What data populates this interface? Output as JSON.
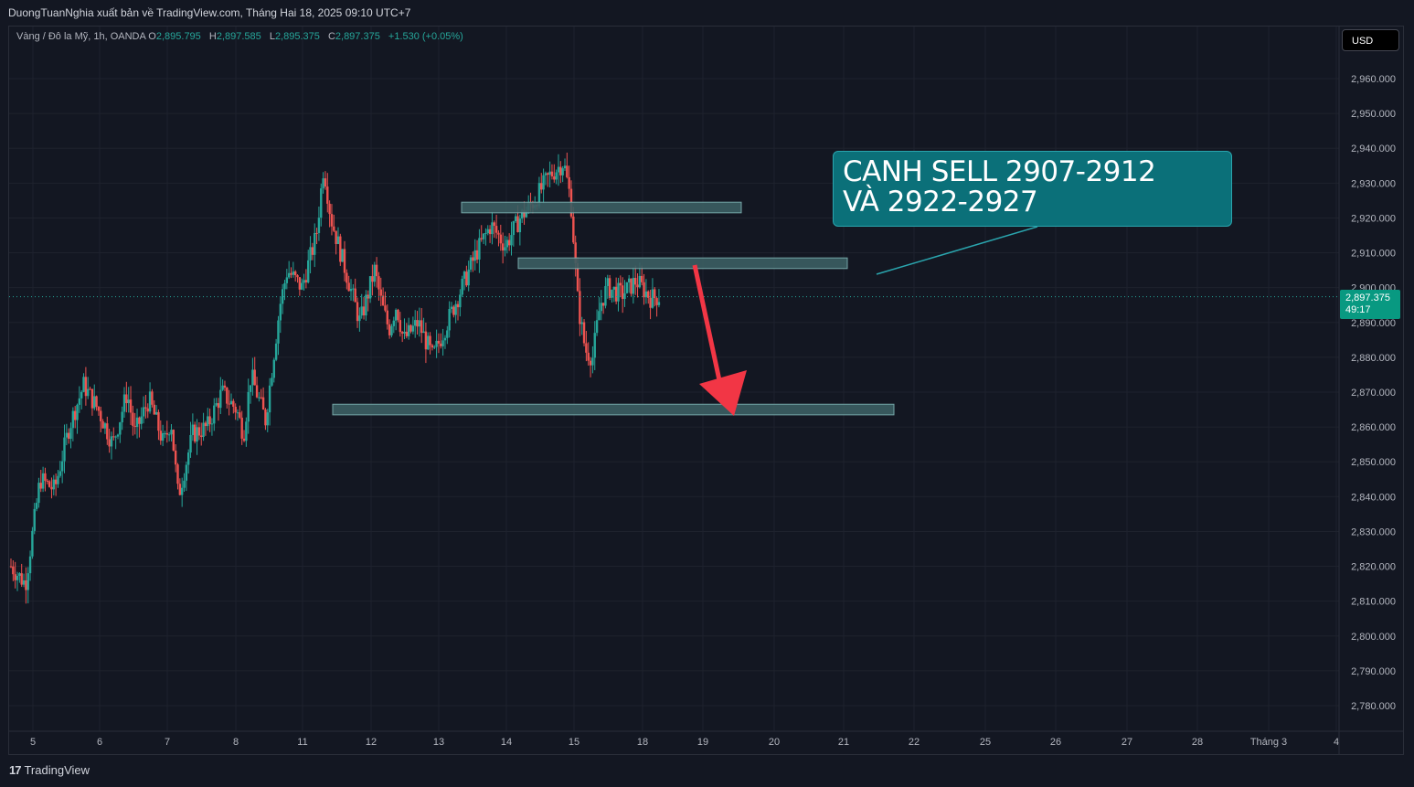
{
  "header": {
    "publisher_text": "DuongTuanNghia xuất bản về TradingView.com, Tháng Hai 18, 2025 09:10 UTC+7"
  },
  "legend": {
    "symbol": "Vàng / Đô la Mỹ, 1h, OANDA",
    "o_label": "O",
    "o_value": "2,895.795",
    "h_label": "H",
    "h_value": "2,897.585",
    "l_label": "L",
    "l_value": "2,895.375",
    "c_label": "C",
    "c_value": "2,897.375",
    "change": "+1.530 (+0.05%)"
  },
  "currency_button": "USD",
  "current_price": {
    "price": "2,897.375",
    "countdown": "49:17"
  },
  "annotation": {
    "line1": "CANH SELL 2907-2912",
    "line2": "VÀ 2922-2927"
  },
  "footer": {
    "brand": "TradingView"
  },
  "colors": {
    "background": "#131722",
    "up": "#26a69a",
    "down": "#ef5350",
    "zone": "#5fa8a8",
    "callout": "#0b7079",
    "arrow": "#f23645"
  },
  "chart_data": {
    "type": "candlestick",
    "title": "Vàng / Đô la Mỹ, 1h, OANDA",
    "ylim": [
      2773,
      2972
    ],
    "y_ticks": [
      "2,960.000",
      "2,950.000",
      "2,940.000",
      "2,930.000",
      "2,920.000",
      "2,910.000",
      "2,900.000",
      "2,890.000",
      "2,880.000",
      "2,870.000",
      "2,860.000",
      "2,850.000",
      "2,840.000",
      "2,830.000",
      "2,820.000",
      "2,810.000",
      "2,800.000",
      "2,790.000",
      "2,780.000"
    ],
    "x_ticks": [
      "5",
      "6",
      "7",
      "8",
      "11",
      "12",
      "13",
      "14",
      "15",
      "18",
      "19",
      "20",
      "21",
      "22",
      "25",
      "26",
      "27",
      "28",
      "Tháng 3",
      "4"
    ],
    "last_price": 2897.375,
    "price_path": [
      [
        0,
        2820
      ],
      [
        2,
        2815
      ],
      [
        4,
        2845
      ],
      [
        6,
        2842
      ],
      [
        8,
        2860
      ],
      [
        10,
        2872
      ],
      [
        12,
        2865
      ],
      [
        14,
        2855
      ],
      [
        16,
        2870
      ],
      [
        17,
        2858
      ],
      [
        19,
        2868
      ],
      [
        21,
        2855
      ],
      [
        22,
        2862
      ],
      [
        23,
        2840
      ],
      [
        25,
        2858
      ],
      [
        27,
        2860
      ],
      [
        29,
        2870
      ],
      [
        31,
        2865
      ],
      [
        32,
        2858
      ],
      [
        33,
        2875
      ],
      [
        35,
        2862
      ],
      [
        37,
        2895
      ],
      [
        38,
        2905
      ],
      [
        40,
        2900
      ],
      [
        42,
        2915
      ],
      [
        43,
        2935
      ],
      [
        44,
        2920
      ],
      [
        46,
        2905
      ],
      [
        48,
        2890
      ],
      [
        50,
        2905
      ],
      [
        51,
        2895
      ],
      [
        52,
        2888
      ],
      [
        53,
        2895
      ],
      [
        54,
        2885
      ],
      [
        56,
        2890
      ],
      [
        58,
        2880
      ],
      [
        60,
        2890
      ],
      [
        62,
        2900
      ],
      [
        64,
        2910
      ],
      [
        66,
        2918
      ],
      [
        68,
        2912
      ],
      [
        70,
        2920
      ],
      [
        72,
        2925
      ],
      [
        74,
        2932
      ],
      [
        76,
        2936
      ],
      [
        77,
        2925
      ],
      [
        78,
        2895
      ],
      [
        79,
        2882
      ],
      [
        80,
        2880
      ],
      [
        81,
        2895
      ],
      [
        82,
        2900
      ],
      [
        84,
        2898
      ],
      [
        86,
        2902
      ],
      [
        88,
        2897
      ],
      [
        89,
        2897.4
      ]
    ],
    "zones": [
      {
        "from": 2922,
        "to": 2924,
        "label": "upper sell zone"
      },
      {
        "from": 2906,
        "to": 2908,
        "label": "lower sell zone"
      },
      {
        "from": 2864,
        "to": 2866,
        "label": "target zone"
      }
    ]
  }
}
